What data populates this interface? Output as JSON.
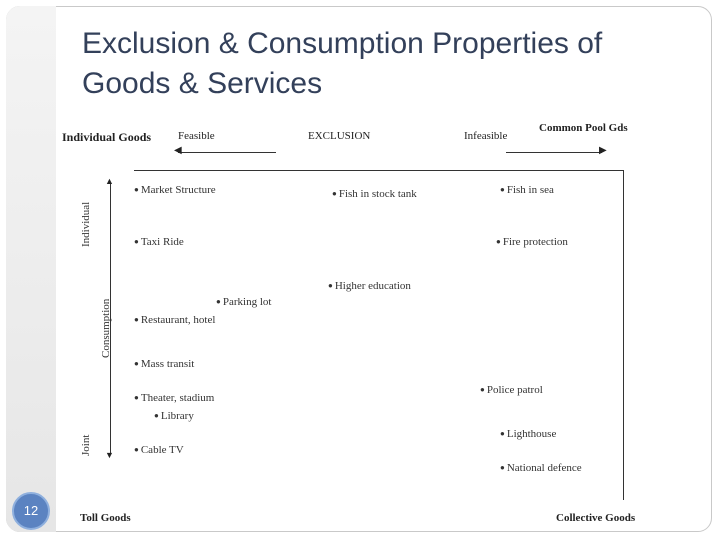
{
  "slide": {
    "title_line1": "Exclusion & Consumption Properties of",
    "title_line2": "Goods & Services",
    "page_number": "12"
  },
  "figure": {
    "top_left": "Individual Goods",
    "top_right": "Common Pool Gds",
    "bottom_left": "Toll Goods",
    "bottom_right": "Collective Goods",
    "exclusion_axis": {
      "left": "Feasible",
      "center": "EXCLUSION",
      "right": "Infeasible"
    },
    "consumption_axis": {
      "top": "Individual",
      "center": "Consumption",
      "bottom": "Joint"
    },
    "items": [
      "Market Structure",
      "Fish in stock tank",
      "Fish in sea",
      "Taxi Ride",
      "Fire protection",
      "Higher education",
      "Parking lot",
      "Restaurant, hotel",
      "Mass transit",
      "Police patrol",
      "Theater, stadium",
      "Library",
      "Lighthouse",
      "Cable TV",
      "National defence"
    ]
  }
}
